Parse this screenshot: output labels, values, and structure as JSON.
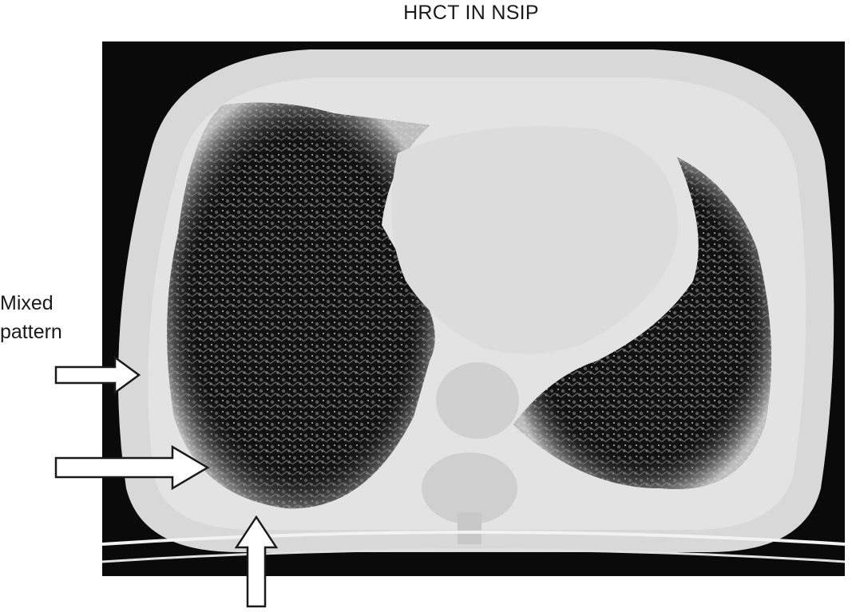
{
  "figure": {
    "title": "HRCT IN NSIP",
    "annotation": {
      "line1": "Mixed",
      "line2": "pattern"
    }
  },
  "icons": {
    "arrow_upper": "right-arrow-icon",
    "arrow_lower": "right-arrow-icon",
    "arrow_bottom": "up-arrow-icon"
  },
  "colors": {
    "background": "#ffffff",
    "scan_background": "#0a0a0a",
    "soft_tissue": "#dcdcdc",
    "lung": "#141414"
  }
}
